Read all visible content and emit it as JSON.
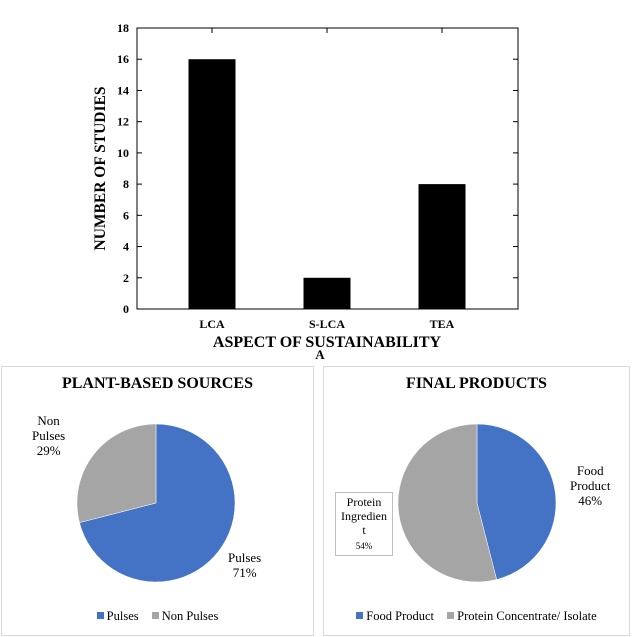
{
  "chart_data": [
    {
      "type": "bar",
      "panel_label": "A",
      "categories": [
        "LCA",
        "S-LCA",
        "TEA"
      ],
      "values": [
        16,
        2,
        8
      ],
      "xlabel": "ASPECT OF SUSTAINABILITY",
      "ylabel": "NUMBER OF STUDIES",
      "ylim": [
        0,
        18
      ],
      "yticks": [
        0,
        2,
        4,
        6,
        8,
        10,
        12,
        14,
        16,
        18
      ],
      "bar_color": "#000000",
      "grid": false
    },
    {
      "type": "pie",
      "title": "PLANT-BASED SOURCES",
      "slices": [
        {
          "name": "Pulses",
          "value": 71,
          "label": "Pulses",
          "pct": "71%",
          "color": "#4472c4"
        },
        {
          "name": "Non Pulses",
          "value": 29,
          "label": "Non Pulses",
          "pct": "29%",
          "color": "#a5a5a5"
        }
      ],
      "legend": [
        "Pulses",
        "Non Pulses"
      ],
      "legend_position": "bottom"
    },
    {
      "type": "pie",
      "title": "FINAL PRODUCTS",
      "slices": [
        {
          "name": "Food Product",
          "value": 46,
          "label": "Food Product",
          "pct": "46%",
          "color": "#4472c4"
        },
        {
          "name": "Protein Concentrate/ Isolate",
          "value": 54,
          "label": "Protein Ingredient",
          "pct": "54%",
          "color": "#a5a5a5"
        }
      ],
      "legend": [
        "Food Product",
        "Protein Concentrate/ Isolate"
      ],
      "legend_position": "bottom"
    }
  ],
  "labels": {
    "pie1_nonpulses_line1": "Non",
    "pie1_nonpulses_line2": "Pulses",
    "pie1_nonpulses_pct": "29%",
    "pie1_pulses_line1": "Pulses",
    "pie1_pulses_pct": "71%",
    "pie2_food_line1": "Food",
    "pie2_food_line2": "Product",
    "pie2_food_pct": "46%",
    "pie2_protein_line1": "Protein",
    "pie2_protein_line2": "Ingredien",
    "pie2_protein_line3": "t",
    "pie2_protein_pct": "54%"
  }
}
